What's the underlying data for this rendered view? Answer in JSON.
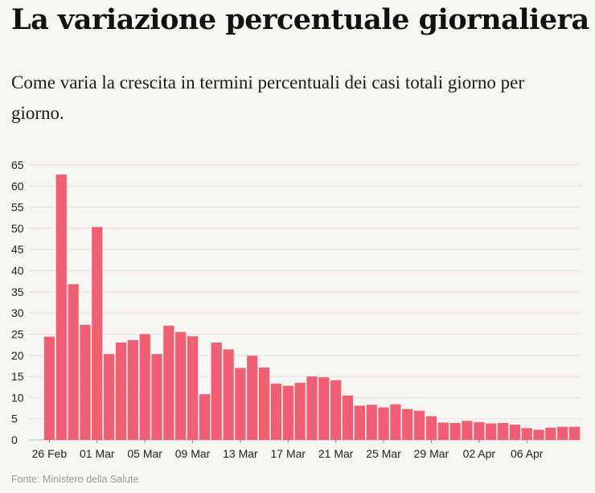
{
  "header": {
    "title": "La variazione percentuale giornaliera",
    "subtitle": "Come varia la crescita in termini percentuali dei casi totali giorno per giorno."
  },
  "footer": {
    "source": "Fonte: Ministero della Salute"
  },
  "chart_data": {
    "type": "bar",
    "title": "La variazione percentuale giornaliera",
    "xlabel": "",
    "ylabel": "",
    "ylim": [
      0,
      65
    ],
    "yticks": [
      0,
      5,
      10,
      15,
      20,
      25,
      30,
      35,
      40,
      45,
      50,
      55,
      60,
      65
    ],
    "grid": true,
    "color": "#f06072",
    "categories": [
      "26 Feb",
      "27 Feb",
      "28 Feb",
      "29 Feb",
      "01 Mar",
      "02 Mar",
      "03 Mar",
      "04 Mar",
      "05 Mar",
      "06 Mar",
      "07 Mar",
      "08 Mar",
      "09 Mar",
      "10 Mar",
      "11 Mar",
      "12 Mar",
      "13 Mar",
      "14 Mar",
      "15 Mar",
      "16 Mar",
      "17 Mar",
      "18 Mar",
      "19 Mar",
      "20 Mar",
      "21 Mar",
      "22 Mar",
      "23 Mar",
      "24 Mar",
      "25 Mar",
      "26 Mar",
      "27 Mar",
      "28 Mar",
      "29 Mar",
      "30 Mar",
      "31 Mar",
      "01 Apr",
      "02 Apr",
      "03 Apr",
      "04 Apr",
      "05 Apr",
      "06 Apr",
      "07 Apr",
      "08 Apr",
      "09 Apr",
      "10 Apr"
    ],
    "values": [
      24.4,
      62.7,
      36.8,
      27.2,
      50.3,
      20.3,
      23.0,
      23.6,
      25.0,
      20.3,
      27.0,
      25.5,
      24.5,
      10.8,
      23.0,
      21.4,
      17.0,
      19.9,
      17.1,
      13.3,
      12.8,
      13.5,
      15.0,
      14.8,
      14.1,
      10.5,
      8.1,
      8.3,
      7.7,
      8.4,
      7.3,
      6.9,
      5.6,
      4.1,
      4.0,
      4.5,
      4.2,
      3.9,
      4.0,
      3.6,
      2.8,
      2.4,
      2.9,
      3.1,
      3.1
    ],
    "xtick_labels": [
      "26 Feb",
      "01 Mar",
      "05 Mar",
      "09 Mar",
      "13 Mar",
      "17 Mar",
      "21 Mar",
      "25 Mar",
      "29 Mar",
      "02 Apr",
      "06 Apr"
    ]
  }
}
